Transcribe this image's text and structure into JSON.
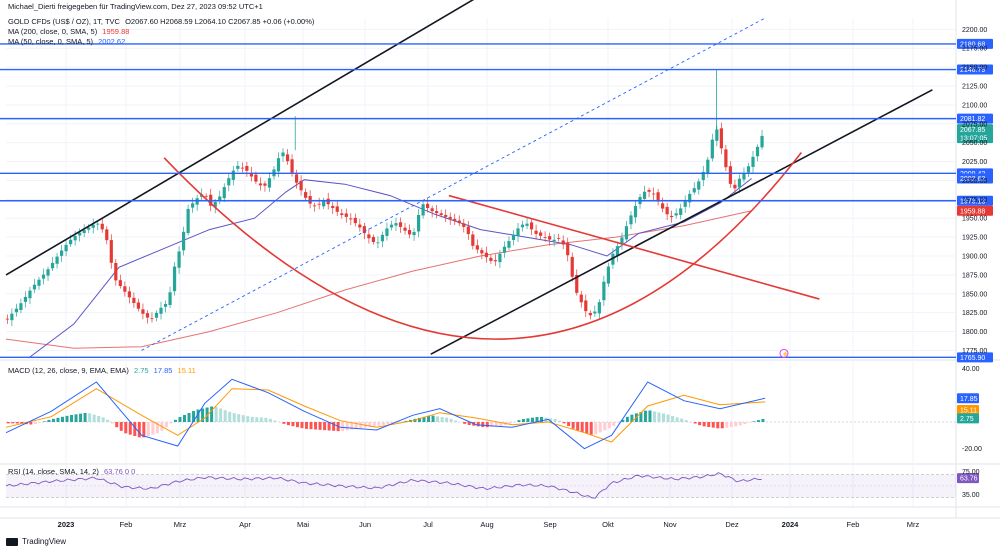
{
  "header": {
    "publisher": "Michael_Dierti freigegeben für TradingView.com, Dez 27, 2023 09:52 UTC+1",
    "symbol": "GOLD CFDs (US$ / OZ), 1T, TVC",
    "ohlc": "O2067.60 H2068.59 L2064.10 C2067.85 +0.06 (+0.00%)",
    "ma200_label": "MA (200, close, 0, SMA, 5)",
    "ma200_value": "1959.88",
    "ma50_label": "MA (50, close, 0, SMA, 5)",
    "ma50_value": "2002.62",
    "macd_label": "MACD (12, 26, close, 9, EMA, EMA)",
    "macd_hist": "2.75",
    "macd_line": "17.85",
    "macd_signal": "15.11",
    "rsi_label": "RSI (14, close, SMA, 14, 2)",
    "rsi_vals": "63.76  0  0"
  },
  "footer": {
    "brand": "TradingView"
  },
  "colors": {
    "blue": "#2962ff",
    "red": "#e53935",
    "green": "#26a69a",
    "ma50": "#5b54c8",
    "ma200": "#e57373",
    "macd": "#2962ff",
    "signal": "#ff9800",
    "rsi": "#7e57c2"
  },
  "chart_data": {
    "type": "candlestick",
    "title": "GOLD CFDs (US$ / OZ), 1T, TVC",
    "x_axis": {
      "ticks": [
        "2023",
        "Feb",
        "Mrz",
        "Apr",
        "Mai",
        "Jun",
        "Jul",
        "Aug",
        "Sep",
        "Okt",
        "Nov",
        "Dez",
        "2024",
        "Feb",
        "Mrz"
      ]
    },
    "price_axis": {
      "range": [
        1765,
        2215
      ],
      "ticks": [
        2200,
        2175,
        2150,
        2125,
        2100,
        2075,
        2050,
        2025,
        2000,
        1975,
        1950,
        1925,
        1900,
        1875,
        1850,
        1825,
        1800,
        1775
      ],
      "tick_labels": [
        "2200.00",
        "2175.00",
        "2150.00",
        "2125.00",
        "2100.00",
        "2075.00",
        "2050.00",
        "2025.00",
        "2000.00",
        "1975.00",
        "1950.00",
        "1925.00",
        "1900.00",
        "1875.00",
        "1850.00",
        "1825.00",
        "1800.00",
        "1775.00"
      ]
    },
    "horizontal_levels": [
      {
        "value": 2180.68,
        "label": "2180.68"
      },
      {
        "value": 2146.79,
        "label": "2146.79"
      },
      {
        "value": 2081.82,
        "label": "2081.82"
      },
      {
        "value": 2009.42,
        "label": "2009.42"
      },
      {
        "value": 1973.13,
        "label": "1973.13"
      },
      {
        "value": 1765.9,
        "label": "1765.90"
      }
    ],
    "price_labels": [
      {
        "value": 2067.85,
        "label": "2067.85",
        "sub": "13:07:05",
        "color": "#26a69a"
      },
      {
        "value": 2002.62,
        "label": "2002.62",
        "color": "#2962ff"
      },
      {
        "value": 1959.88,
        "label": "1959.88",
        "color": "#e53935"
      }
    ],
    "price_path": [
      [
        0,
        1815
      ],
      [
        3,
        1835
      ],
      [
        6,
        1860
      ],
      [
        9,
        1880
      ],
      [
        12,
        1905
      ],
      [
        14,
        1920
      ],
      [
        16,
        1930
      ],
      [
        19,
        1940
      ],
      [
        20,
        1945
      ],
      [
        22,
        1930
      ],
      [
        24,
        1870
      ],
      [
        26,
        1855
      ],
      [
        28,
        1840
      ],
      [
        30,
        1825
      ],
      [
        32,
        1815
      ],
      [
        34,
        1830
      ],
      [
        36,
        1840
      ],
      [
        37,
        1880
      ],
      [
        39,
        1920
      ],
      [
        40,
        1960
      ],
      [
        42,
        1975
      ],
      [
        44,
        1985
      ],
      [
        45,
        1965
      ],
      [
        47,
        1975
      ],
      [
        49,
        2000
      ],
      [
        51,
        2020
      ],
      [
        53,
        2015
      ],
      [
        55,
        2000
      ],
      [
        57,
        1990
      ],
      [
        59,
        2010
      ],
      [
        61,
        2040
      ],
      [
        62,
        2030
      ],
      [
        64,
        2000
      ],
      [
        66,
        1980
      ],
      [
        67,
        1970
      ],
      [
        69,
        1965
      ],
      [
        70,
        1975
      ],
      [
        72,
        1965
      ],
      [
        74,
        1955
      ],
      [
        76,
        1950
      ],
      [
        78,
        1940
      ],
      [
        80,
        1925
      ],
      [
        82,
        1915
      ],
      [
        84,
        1935
      ],
      [
        86,
        1945
      ],
      [
        88,
        1935
      ],
      [
        90,
        1925
      ],
      [
        92,
        1970
      ],
      [
        94,
        1960
      ],
      [
        96,
        1955
      ],
      [
        98,
        1950
      ],
      [
        100,
        1945
      ],
      [
        102,
        1935
      ],
      [
        103,
        1915
      ],
      [
        105,
        1905
      ],
      [
        107,
        1895
      ],
      [
        108,
        1890
      ],
      [
        110,
        1910
      ],
      [
        112,
        1925
      ],
      [
        113,
        1935
      ],
      [
        115,
        1945
      ],
      [
        117,
        1930
      ],
      [
        119,
        1925
      ],
      [
        121,
        1920
      ],
      [
        122,
        1925
      ],
      [
        124,
        1910
      ],
      [
        125,
        1880
      ],
      [
        126,
        1855
      ],
      [
        128,
        1830
      ],
      [
        129,
        1820
      ],
      [
        131,
        1830
      ],
      [
        132,
        1860
      ],
      [
        134,
        1900
      ],
      [
        136,
        1920
      ],
      [
        138,
        1950
      ],
      [
        140,
        1975
      ],
      [
        141,
        1985
      ],
      [
        143,
        1985
      ],
      [
        145,
        1965
      ],
      [
        147,
        1950
      ],
      [
        149,
        1960
      ],
      [
        151,
        1980
      ],
      [
        153,
        1995
      ],
      [
        155,
        2020
      ],
      [
        156,
        2045
      ],
      [
        157,
        2075
      ],
      [
        158,
        2050
      ],
      [
        159,
        2025
      ],
      [
        160,
        2000
      ],
      [
        161,
        1985
      ],
      [
        162,
        2000
      ],
      [
        164,
        2015
      ],
      [
        166,
        2040
      ],
      [
        167,
        2055
      ],
      [
        168,
        2067.85
      ]
    ],
    "ma50_path": [
      [
        5,
        1765
      ],
      [
        15,
        1810
      ],
      [
        25,
        1885
      ],
      [
        35,
        1910
      ],
      [
        45,
        1935
      ],
      [
        55,
        1950
      ],
      [
        62,
        1985
      ],
      [
        66,
        2001
      ],
      [
        75,
        1995
      ],
      [
        85,
        1980
      ],
      [
        95,
        1955
      ],
      [
        105,
        1935
      ],
      [
        115,
        1925
      ],
      [
        125,
        1915
      ],
      [
        133,
        1900
      ],
      [
        140,
        1930
      ],
      [
        150,
        1945
      ],
      [
        158,
        1970
      ],
      [
        165,
        2002.62
      ]
    ],
    "ma200_path": [
      [
        0,
        1790
      ],
      [
        15,
        1778
      ],
      [
        30,
        1780
      ],
      [
        45,
        1800
      ],
      [
        60,
        1825
      ],
      [
        75,
        1855
      ],
      [
        90,
        1880
      ],
      [
        105,
        1900
      ],
      [
        120,
        1915
      ],
      [
        135,
        1925
      ],
      [
        150,
        1940
      ],
      [
        165,
        1959.88
      ]
    ],
    "drawings": [
      {
        "kind": "line",
        "color": "#131722",
        "from": [
          0,
          1875
        ],
        "to": [
          105,
          2245
        ]
      },
      {
        "kind": "line",
        "color": "#2962ff",
        "dash": true,
        "from": [
          30,
          1775
        ],
        "to": [
          168,
          2215
        ]
      },
      {
        "kind": "line",
        "color": "#131722",
        "from": [
          94,
          1770
        ],
        "to": [
          205,
          2120
        ]
      },
      {
        "kind": "line",
        "color": "#e53935",
        "from": [
          98,
          1980
        ],
        "to": [
          180,
          1843
        ]
      },
      {
        "kind": "arc",
        "color": "#e53935",
        "from": [
          35,
          2030
        ],
        "via": [
          109,
          1790
        ],
        "to": [
          176,
          2037
        ]
      }
    ],
    "macd": {
      "range": [
        -30,
        45
      ],
      "tick_labels": [
        "40.00",
        "-20.00"
      ],
      "tick_values": [
        40,
        -20
      ],
      "hist_label": "2.75",
      "line_label": "17.85",
      "signal_label": "15.11",
      "hist": [
        [
          2,
          -1
        ],
        [
          6,
          -2
        ],
        [
          10,
          2
        ],
        [
          14,
          5
        ],
        [
          18,
          7
        ],
        [
          22,
          3
        ],
        [
          26,
          -8
        ],
        [
          30,
          -12
        ],
        [
          34,
          -8
        ],
        [
          38,
          3
        ],
        [
          42,
          9
        ],
        [
          46,
          12
        ],
        [
          50,
          7
        ],
        [
          54,
          4
        ],
        [
          58,
          3
        ],
        [
          62,
          -2
        ],
        [
          66,
          -5
        ],
        [
          70,
          -6
        ],
        [
          74,
          -7
        ],
        [
          78,
          -5
        ],
        [
          82,
          -3
        ],
        [
          86,
          -1
        ],
        [
          90,
          2
        ],
        [
          94,
          5
        ],
        [
          98,
          3
        ],
        [
          102,
          -2
        ],
        [
          106,
          -4
        ],
        [
          110,
          -3
        ],
        [
          114,
          2
        ],
        [
          118,
          4
        ],
        [
          122,
          2
        ],
        [
          126,
          -6
        ],
        [
          130,
          -10
        ],
        [
          134,
          -4
        ],
        [
          138,
          5
        ],
        [
          142,
          9
        ],
        [
          146,
          6
        ],
        [
          150,
          2
        ],
        [
          154,
          -3
        ],
        [
          158,
          -5
        ],
        [
          162,
          -3
        ],
        [
          166,
          1
        ],
        [
          168,
          2.75
        ]
      ],
      "line": [
        [
          0,
          -8
        ],
        [
          10,
          8
        ],
        [
          20,
          30
        ],
        [
          30,
          -10
        ],
        [
          38,
          -18
        ],
        [
          44,
          14
        ],
        [
          50,
          32
        ],
        [
          58,
          22
        ],
        [
          66,
          8
        ],
        [
          74,
          -4
        ],
        [
          82,
          -6
        ],
        [
          90,
          5
        ],
        [
          96,
          10
        ],
        [
          104,
          -2
        ],
        [
          112,
          -4
        ],
        [
          120,
          2
        ],
        [
          128,
          -20
        ],
        [
          134,
          -10
        ],
        [
          142,
          30
        ],
        [
          150,
          16
        ],
        [
          158,
          10
        ],
        [
          168,
          17.85
        ]
      ],
      "signal": [
        [
          0,
          -4
        ],
        [
          10,
          4
        ],
        [
          20,
          25
        ],
        [
          30,
          5
        ],
        [
          38,
          -10
        ],
        [
          44,
          3
        ],
        [
          50,
          25
        ],
        [
          58,
          24
        ],
        [
          66,
          12
        ],
        [
          74,
          1
        ],
        [
          82,
          -4
        ],
        [
          90,
          1
        ],
        [
          96,
          7
        ],
        [
          104,
          3
        ],
        [
          112,
          -2
        ],
        [
          120,
          0
        ],
        [
          128,
          -8
        ],
        [
          134,
          -15
        ],
        [
          142,
          12
        ],
        [
          150,
          20
        ],
        [
          158,
          13
        ],
        [
          168,
          15.11
        ]
      ]
    },
    "rsi": {
      "range": [
        20,
        85
      ],
      "tick_labels": [
        "75.00",
        "35.00"
      ],
      "tick_values": [
        75,
        35
      ],
      "value_label": "63.76",
      "band": [
        30,
        70
      ],
      "line": [
        [
          0,
          50
        ],
        [
          10,
          58
        ],
        [
          20,
          64
        ],
        [
          26,
          48
        ],
        [
          32,
          45
        ],
        [
          38,
          58
        ],
        [
          44,
          65
        ],
        [
          52,
          62
        ],
        [
          60,
          64
        ],
        [
          66,
          55
        ],
        [
          74,
          50
        ],
        [
          82,
          46
        ],
        [
          90,
          60
        ],
        [
          98,
          55
        ],
        [
          106,
          45
        ],
        [
          114,
          52
        ],
        [
          120,
          50
        ],
        [
          126,
          38
        ],
        [
          130,
          28
        ],
        [
          134,
          55
        ],
        [
          140,
          68
        ],
        [
          148,
          62
        ],
        [
          154,
          66
        ],
        [
          158,
          72
        ],
        [
          162,
          58
        ],
        [
          168,
          63.76
        ]
      ]
    }
  }
}
